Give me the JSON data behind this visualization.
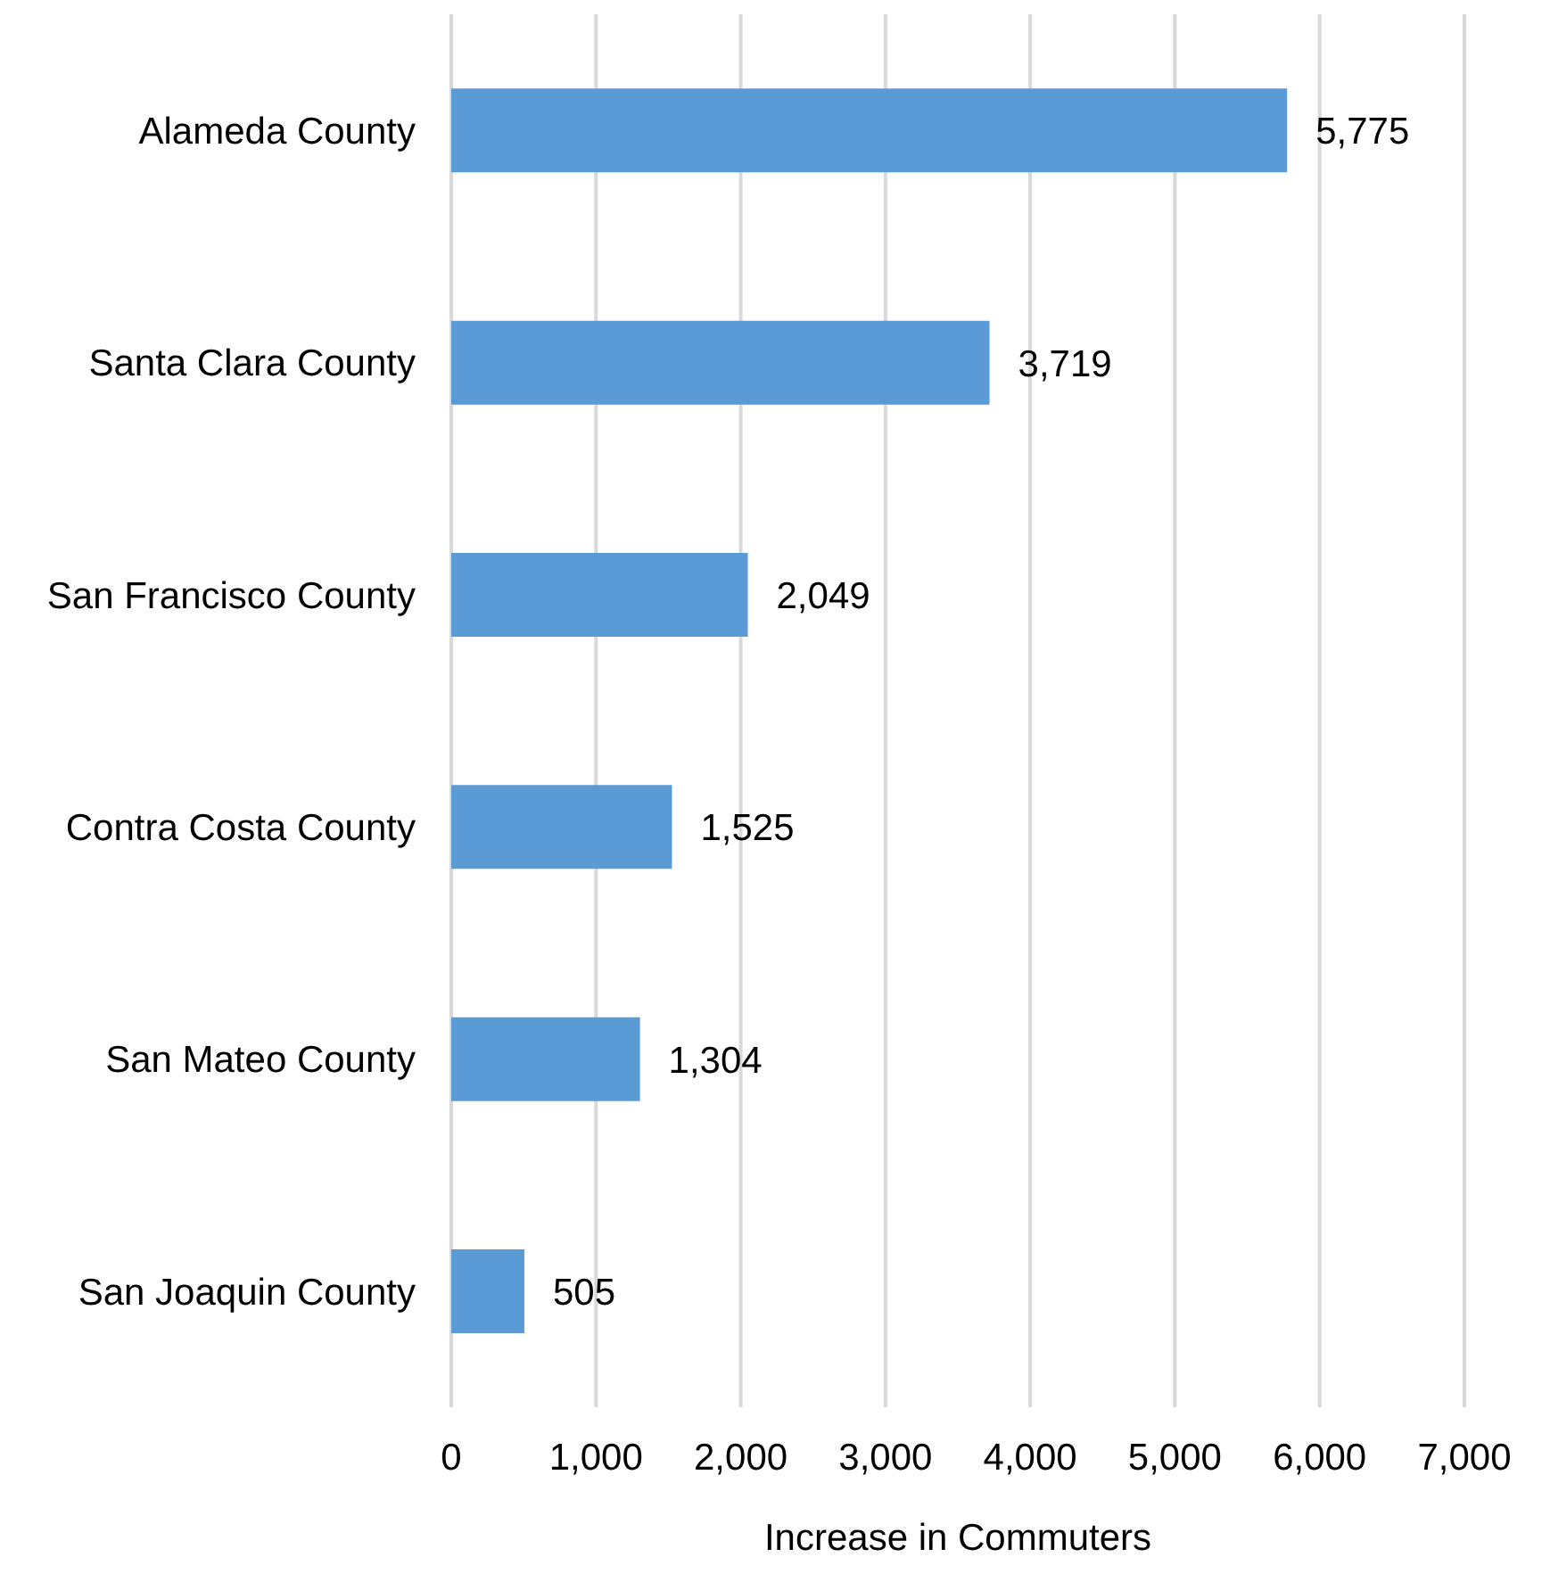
{
  "chart_data": {
    "type": "bar",
    "orientation": "horizontal",
    "xlabel": "Increase in Commuters",
    "categories": [
      "Alameda County",
      "Santa Clara County",
      "San Francisco County",
      "Contra Costa County",
      "San Mateo County",
      "San Joaquin County"
    ],
    "values": [
      5775,
      3719,
      2049,
      1525,
      1304,
      505
    ],
    "color": "#5b9bd5",
    "xlim": [
      0,
      7000
    ],
    "xticks": [
      {
        "value": 0,
        "label": "0"
      },
      {
        "value": 1000,
        "label": "1,000"
      },
      {
        "value": 2000,
        "label": "2,000"
      },
      {
        "value": 3000,
        "label": "3,000"
      },
      {
        "value": 4000,
        "label": "4,000"
      },
      {
        "value": 5000,
        "label": "5,000"
      },
      {
        "value": 6000,
        "label": "6,000"
      },
      {
        "value": 7000,
        "label": "7,000"
      }
    ],
    "value_labels": [
      "5,775",
      "3,719",
      "2,049",
      "1,525",
      "1,304",
      "505"
    ],
    "grid": "x",
    "legend": false
  }
}
